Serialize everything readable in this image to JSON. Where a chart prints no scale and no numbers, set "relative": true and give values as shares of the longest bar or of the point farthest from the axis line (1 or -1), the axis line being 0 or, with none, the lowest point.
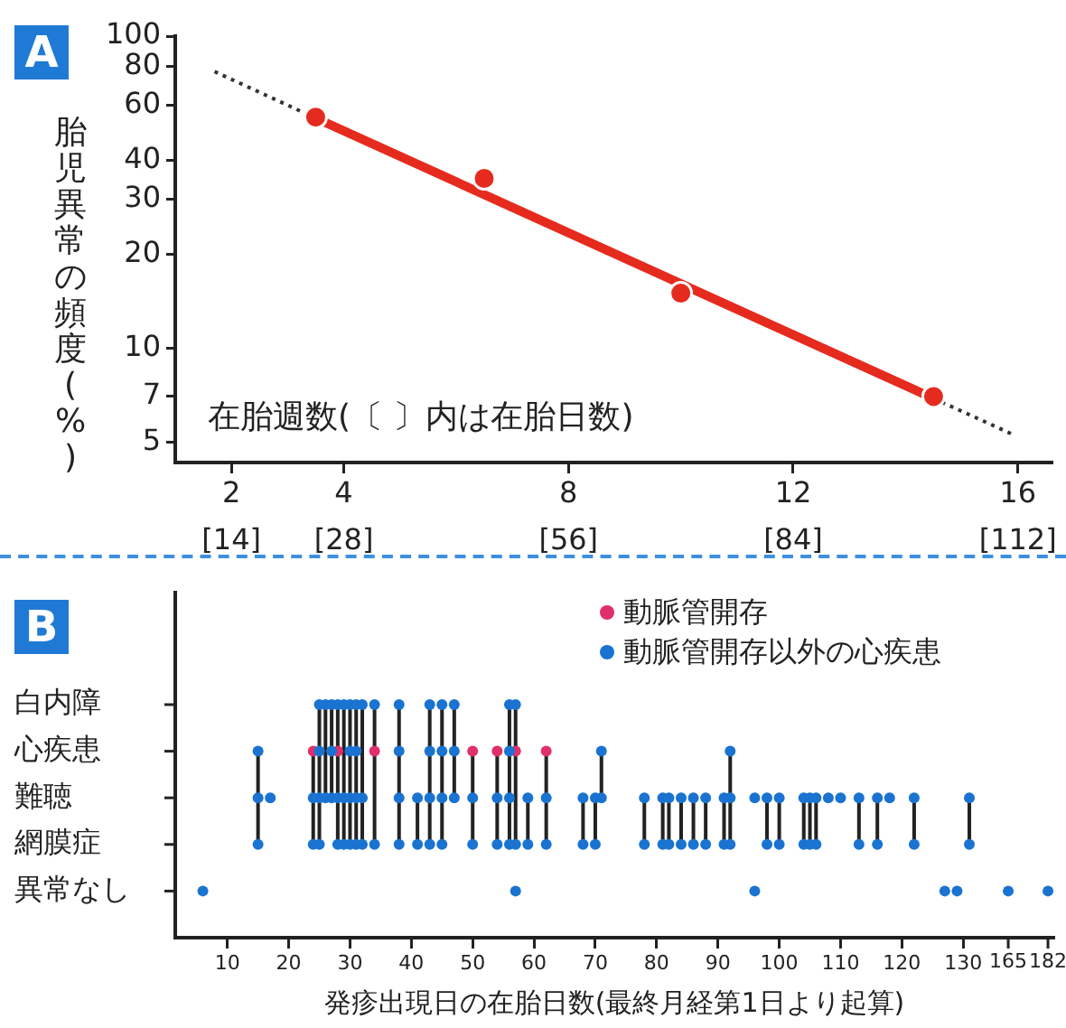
{
  "chart_data": [
    {
      "type": "line",
      "title": "A",
      "xlabel": "在胎週数(〔 〕内は在胎日数)",
      "ylabel": "胎児異常の頻度(%)",
      "log": "y",
      "xlim": [
        1,
        16.6
      ],
      "ylim": [
        4.3,
        100
      ],
      "xticks": [
        2,
        4,
        8,
        12,
        16
      ],
      "x2lim": [
        7,
        116.2
      ],
      "x2ticks": [
        {
          "value": 14,
          "label": "[14]"
        },
        {
          "value": 28,
          "label": "[28]"
        },
        {
          "value": 56,
          "label": "[56]"
        },
        {
          "value": 84,
          "label": "[84]"
        },
        {
          "value": 112,
          "label": "[112]"
        }
      ],
      "yticks": [
        5,
        7,
        10,
        20,
        30,
        40,
        60,
        80,
        100
      ],
      "series": [
        {
          "x": [
            1.7,
            3.5
          ],
          "values": [
            77,
            54.6
          ],
          "color": "#333333",
          "line_style": "dotted",
          "marker": "none"
        },
        {
          "x": [
            14.5,
            15.9
          ],
          "values": [
            6.9,
            5.3
          ],
          "color": "#333333",
          "line_style": "dotted",
          "marker": "none"
        },
        {
          "x": [
            3.5,
            14.5
          ],
          "values": [
            54.6,
            6.9
          ],
          "color": "#e52b1e",
          "line_style": "solid",
          "marker": "none"
        },
        {
          "type": "scatter",
          "x": [
            3.5,
            6.5,
            10,
            14.5
          ],
          "values": [
            55,
            35,
            15,
            7
          ],
          "color": "#e52b1e",
          "marker": "circle"
        }
      ]
    },
    {
      "type": "scatter",
      "title": "B",
      "xlabel": "発疹出現日の在胎日数(最終月経第1日より起算)",
      "legend": "top right",
      "relative": true,
      "xlim": [
        1.5,
        144.7
      ],
      "xticks": [
        10,
        20,
        30,
        40,
        50,
        60,
        70,
        80,
        90,
        100,
        110,
        120,
        130
      ],
      "x2lim": [
        -191.3,
        184.3
      ],
      "x2ticks": [
        165,
        182
      ],
      "annotations": [
        "白内障",
        "心疾患",
        "難聴",
        "網膜症",
        "異常なし"
      ],
      "series": [
        {
          "type": "line",
          "color": "#222222",
          "line_style": "solid",
          "marker": "none",
          "x": [
            15,
            15,
            null,
            24,
            24,
            null,
            25,
            25,
            null,
            26,
            26,
            null,
            27,
            27,
            null,
            28,
            28,
            null,
            29,
            29,
            null,
            30,
            30,
            null,
            31,
            31,
            null,
            32,
            32,
            null,
            34,
            34,
            null,
            38,
            38,
            null,
            41,
            41,
            null,
            43,
            43,
            null,
            45,
            45,
            null,
            47,
            47,
            null,
            50,
            50,
            null,
            54,
            54,
            null,
            56,
            56,
            null,
            57,
            57,
            null,
            59,
            59,
            null,
            62,
            62,
            null,
            68,
            68,
            null,
            70,
            70,
            null,
            71,
            71,
            null,
            78,
            78,
            null,
            81,
            81,
            null,
            82,
            82,
            null,
            84,
            84,
            null,
            86,
            86,
            null,
            88,
            88,
            null,
            91,
            91,
            null,
            92,
            92,
            null,
            98,
            98,
            null,
            100,
            100,
            null,
            104,
            104,
            null,
            105,
            105,
            null,
            106,
            106,
            null,
            113,
            113,
            null,
            116,
            116,
            null,
            122,
            122,
            null,
            131,
            131
          ],
          "values": [
            0.8,
            0.4,
            null,
            0.8,
            0.4,
            null,
            1,
            0.4,
            null,
            1,
            0.6,
            null,
            1,
            0.6,
            null,
            1,
            0.4,
            null,
            1,
            0.4,
            null,
            1,
            0.4,
            null,
            1,
            0.4,
            null,
            1,
            0.4,
            null,
            1,
            0.4,
            null,
            1,
            0.4,
            null,
            0.6,
            0.4,
            null,
            1,
            0.4,
            null,
            1,
            0.4,
            null,
            1,
            0.6,
            null,
            0.8,
            0.4,
            null,
            0.8,
            0.4,
            null,
            1,
            0.4,
            null,
            1,
            0.4,
            null,
            0.6,
            0.4,
            null,
            0.8,
            0.4,
            null,
            0.6,
            0.4,
            null,
            0.6,
            0.4,
            null,
            0.8,
            0.6,
            null,
            0.6,
            0.4,
            null,
            0.6,
            0.4,
            null,
            0.6,
            0.4,
            null,
            0.6,
            0.4,
            null,
            0.6,
            0.4,
            null,
            0.6,
            0.4,
            null,
            0.6,
            0.4,
            null,
            0.8,
            0.4,
            null,
            0.6,
            0.4,
            null,
            0.6,
            0.4,
            null,
            0.6,
            0.4,
            null,
            0.6,
            0.4,
            null,
            0.6,
            0.4,
            null,
            0.6,
            0.4,
            null,
            0.6,
            0.4,
            null,
            0.6,
            0.4,
            null,
            0.6,
            0.4
          ]
        },
        {
          "name": "動脈管開存以外の心疾患",
          "color": "#1a73d0",
          "marker": "circle",
          "x": [
            6,
            15,
            15,
            15,
            17,
            24,
            24,
            25,
            25,
            25,
            25,
            26,
            26,
            27,
            27,
            27,
            28,
            28,
            28,
            29,
            29,
            29,
            30,
            30,
            30,
            30,
            31,
            31,
            31,
            31,
            32,
            32,
            32,
            34,
            34,
            38,
            38,
            38,
            38,
            41,
            41,
            43,
            43,
            43,
            43,
            45,
            45,
            45,
            45,
            47,
            47,
            47,
            50,
            50,
            54,
            54,
            56,
            56,
            56,
            56,
            57,
            57,
            57,
            59,
            59,
            62,
            62,
            68,
            68,
            70,
            70,
            71,
            71,
            78,
            78,
            81,
            81,
            82,
            82,
            84,
            84,
            86,
            86,
            88,
            88,
            91,
            91,
            92,
            92,
            92,
            96,
            96,
            98,
            98,
            100,
            100,
            104,
            104,
            105,
            105,
            106,
            106,
            108,
            110,
            113,
            113,
            116,
            116,
            118,
            122,
            122,
            127,
            129,
            131,
            131
          ],
          "values": [
            0.2,
            0.8,
            0.6,
            0.4,
            0.6,
            0.6,
            0.4,
            1,
            0.8,
            0.6,
            0.4,
            1,
            0.6,
            1,
            0.8,
            0.6,
            1,
            0.6,
            0.4,
            1,
            0.6,
            0.4,
            1,
            0.8,
            0.6,
            0.4,
            1,
            0.8,
            0.6,
            0.4,
            1,
            0.6,
            0.4,
            1,
            0.4,
            1,
            0.8,
            0.6,
            0.4,
            0.6,
            0.4,
            1,
            0.8,
            0.6,
            0.4,
            1,
            0.8,
            0.6,
            0.4,
            1,
            0.8,
            0.6,
            0.6,
            0.4,
            0.6,
            0.4,
            1,
            0.8,
            0.6,
            0.4,
            1,
            0.4,
            0.2,
            0.6,
            0.4,
            0.6,
            0.4,
            0.6,
            0.4,
            0.6,
            0.4,
            0.8,
            0.6,
            0.6,
            0.4,
            0.6,
            0.4,
            0.6,
            0.4,
            0.6,
            0.4,
            0.6,
            0.4,
            0.6,
            0.4,
            0.6,
            0.4,
            0.8,
            0.6,
            0.4,
            0.6,
            0.2,
            0.6,
            0.4,
            0.6,
            0.4,
            0.6,
            0.4,
            0.6,
            0.4,
            0.6,
            0.4,
            0.6,
            0.6,
            0.6,
            0.4,
            0.6,
            0.4,
            0.6,
            0.6,
            0.4,
            0.2,
            0.2,
            0.6,
            0.4
          ]
        },
        {
          "name": "動脈管開存",
          "color": "#e0306a",
          "marker": "circle",
          "x": [
            24,
            28,
            34,
            50,
            54,
            57,
            62
          ],
          "values": [
            0.8,
            0.8,
            0.8,
            0.8,
            0.8,
            0.8,
            0.8
          ]
        },
        {
          "color": "#1a73d0",
          "marker": "circle",
          "axis": "x2",
          "x": [
            165,
            182
          ],
          "values": [
            0.2,
            0.2
          ]
        }
      ]
    }
  ]
}
